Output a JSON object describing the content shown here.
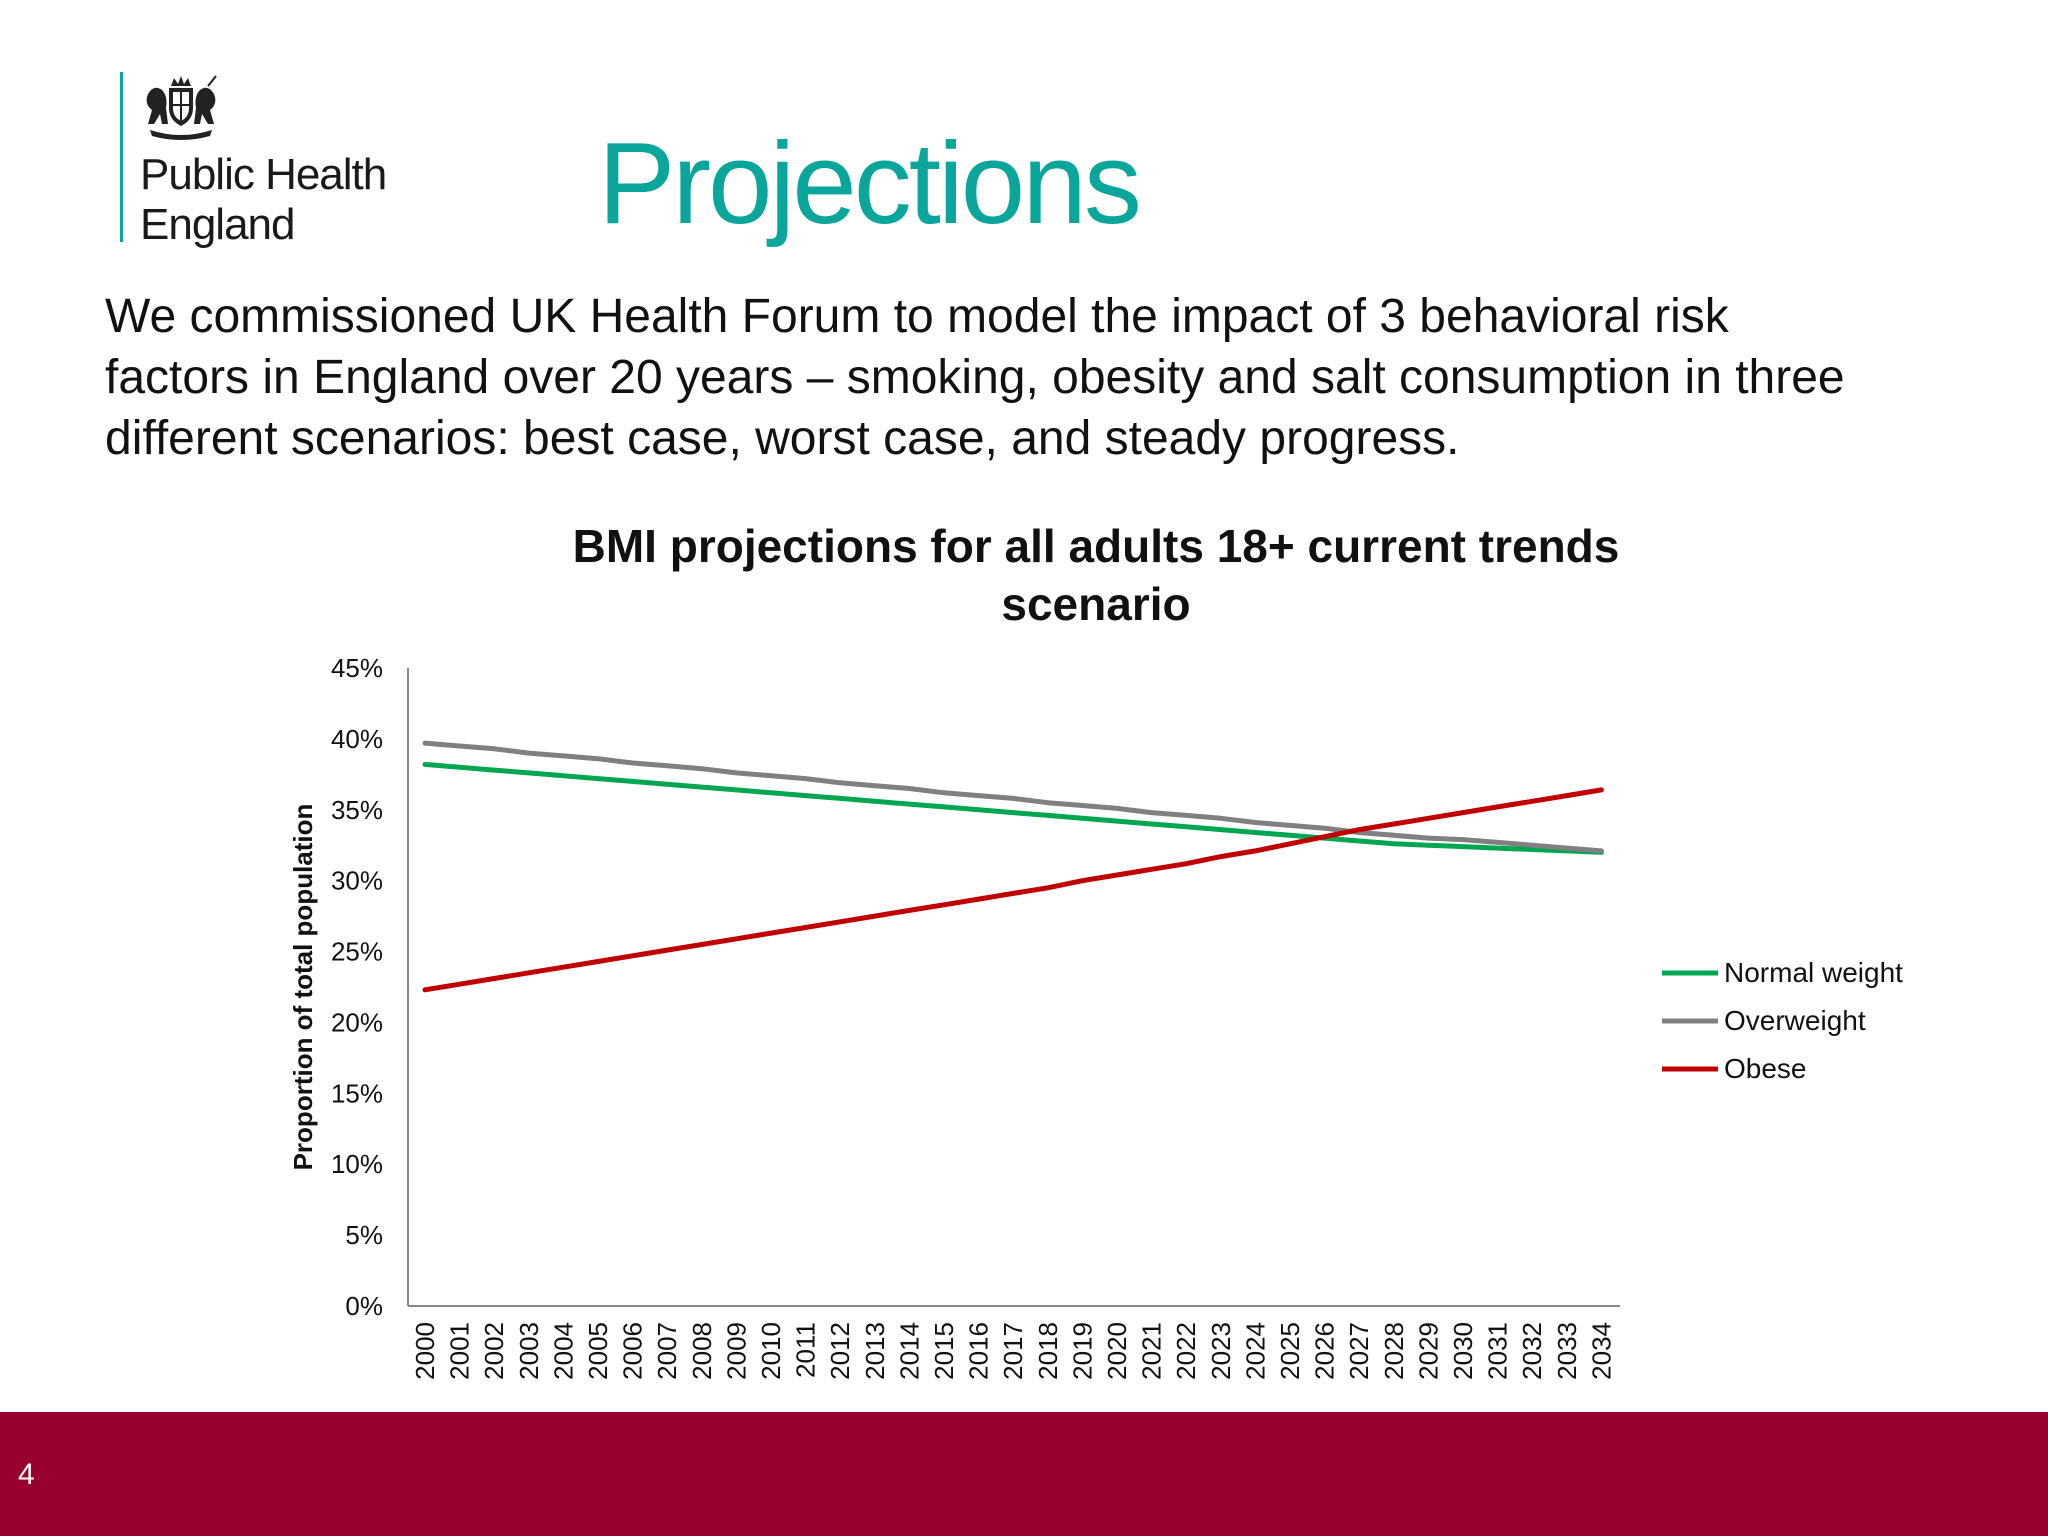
{
  "logo": {
    "line1": "Public Health",
    "line2": "England"
  },
  "slide": {
    "title": "Projections",
    "intro": "We commissioned UK Health Forum to model the impact of 3 behavioral risk factors in England over 20 years – smoking, obesity and salt consumption in three different scenarios: best case, worst case, and steady progress.",
    "page_number": "4"
  },
  "chart_data": {
    "type": "line",
    "title": "BMI projections for all adults 18+ current trends scenario",
    "title_lines": [
      "BMI projections for all adults 18+ current trends",
      "scenario"
    ],
    "xlabel": "",
    "ylabel": "Proportion of total population",
    "ylim": [
      0,
      45
    ],
    "y_ticks": [
      "0%",
      "5%",
      "10%",
      "15%",
      "20%",
      "25%",
      "30%",
      "35%",
      "40%",
      "45%"
    ],
    "x": [
      "2000",
      "2001",
      "2002",
      "2003",
      "2004",
      "2005",
      "2006",
      "2007",
      "2008",
      "2009",
      "2010",
      "2011",
      "2012",
      "2013",
      "2014",
      "2015",
      "2016",
      "2017",
      "2018",
      "2019",
      "2020",
      "2021",
      "2022",
      "2023",
      "2024",
      "2025",
      "2026",
      "2027",
      "2028",
      "2029",
      "2030",
      "2031",
      "2032",
      "2033",
      "2034"
    ],
    "grid": false,
    "legend_position": "right",
    "series": [
      {
        "name": "Normal weight",
        "color": "#00a650",
        "values": [
          38.2,
          38.0,
          37.8,
          37.6,
          37.4,
          37.2,
          37.0,
          36.8,
          36.6,
          36.4,
          36.2,
          36.0,
          35.8,
          35.6,
          35.4,
          35.2,
          35.0,
          34.8,
          34.6,
          34.4,
          34.2,
          34.0,
          33.8,
          33.6,
          33.4,
          33.2,
          33.0,
          32.8,
          32.6,
          32.5,
          32.4,
          32.3,
          32.2,
          32.1,
          32.0
        ]
      },
      {
        "name": "Overweight",
        "color": "#808080",
        "values": [
          39.7,
          39.5,
          39.3,
          39.0,
          38.8,
          38.6,
          38.3,
          38.1,
          37.9,
          37.6,
          37.4,
          37.2,
          36.9,
          36.7,
          36.5,
          36.2,
          36.0,
          35.8,
          35.5,
          35.3,
          35.1,
          34.8,
          34.6,
          34.4,
          34.1,
          33.9,
          33.7,
          33.4,
          33.2,
          33.0,
          32.9,
          32.7,
          32.5,
          32.3,
          32.1
        ]
      },
      {
        "name": "Obese",
        "color": "#c00000",
        "values": [
          22.3,
          22.7,
          23.1,
          23.5,
          23.9,
          24.3,
          24.7,
          25.1,
          25.5,
          25.9,
          26.3,
          26.7,
          27.1,
          27.5,
          27.9,
          28.3,
          28.7,
          29.1,
          29.5,
          30.0,
          30.4,
          30.8,
          31.2,
          31.7,
          32.1,
          32.6,
          33.1,
          33.6,
          34.0,
          34.4,
          34.8,
          35.2,
          35.6,
          36.0,
          36.4
        ]
      }
    ]
  }
}
